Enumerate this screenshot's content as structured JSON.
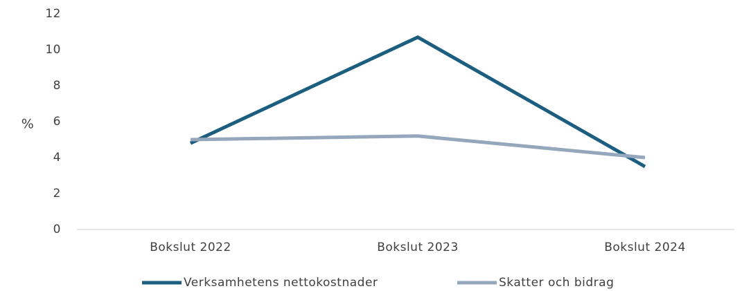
{
  "chart_data": {
    "type": "line",
    "categories": [
      "Bokslut 2022",
      "Bokslut 2023",
      "Bokslut 2024"
    ],
    "series": [
      {
        "name": "Verksamhetens nettokostnader",
        "color": "#1b5e7f",
        "values": [
          4.8,
          10.7,
          3.5
        ]
      },
      {
        "name": "Skatter och bidrag",
        "color": "#95a7bc",
        "values": [
          5.0,
          5.2,
          4.0
        ]
      }
    ],
    "y_label": "%",
    "ylim": [
      0,
      12
    ],
    "yticks": [
      0,
      2,
      4,
      6,
      8,
      10,
      12
    ],
    "grid": false,
    "legend": "bottom"
  }
}
